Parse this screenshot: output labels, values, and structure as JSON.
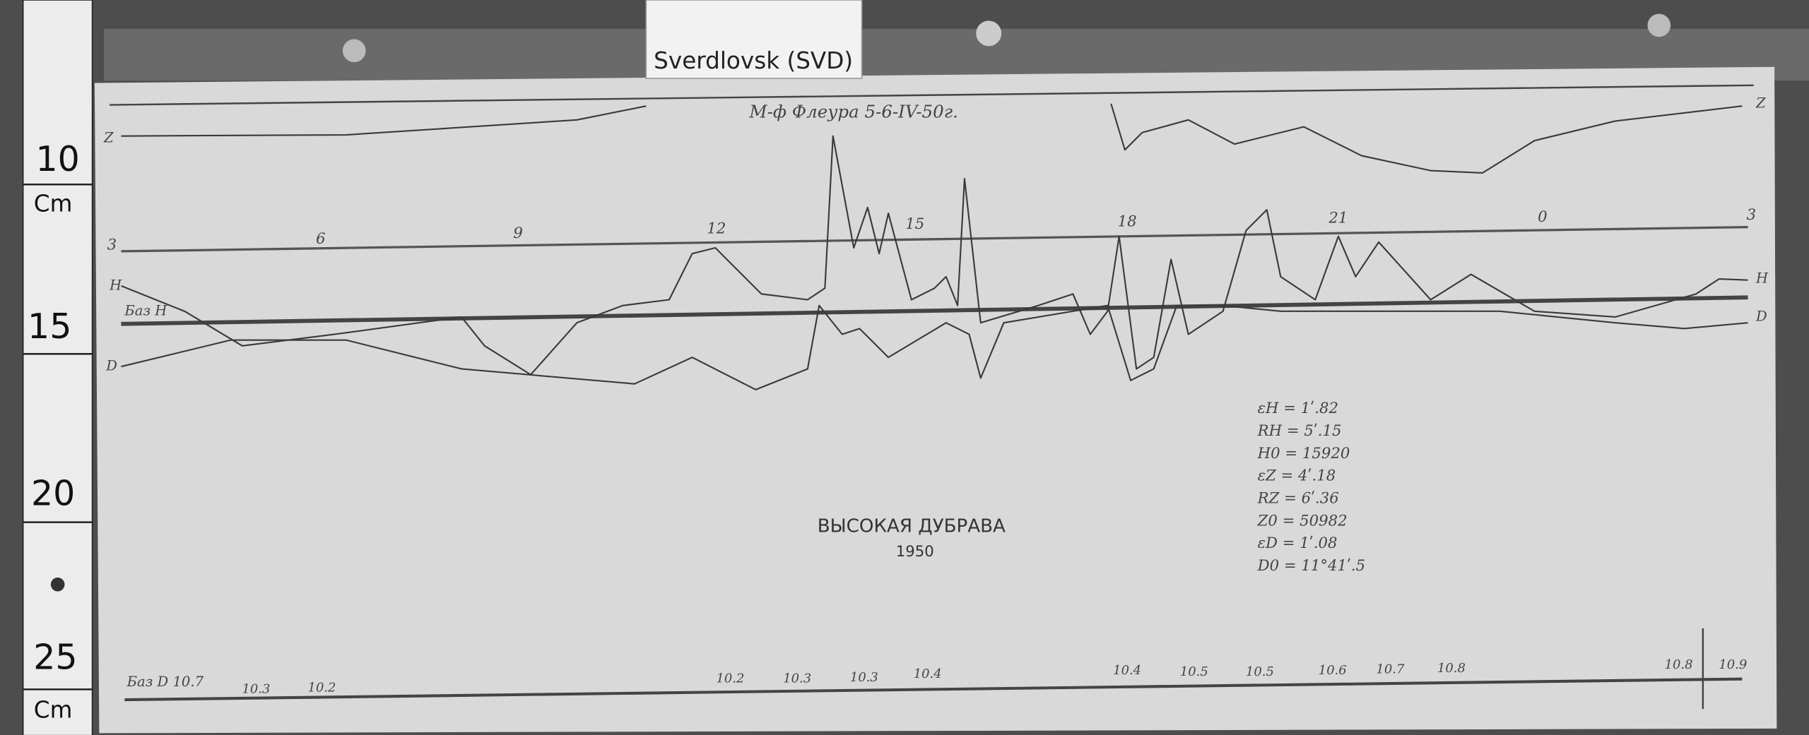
{
  "tag": "Sverdlovsk (SVD)",
  "ruler": {
    "labels": [
      "10",
      "Cm",
      "15",
      "20",
      "25",
      "Cm"
    ]
  },
  "magnetogram": {
    "title": "М-ф Флеура 5-6-IV-50г.",
    "station": "ВЫСОКАЯ ДУБРАВА",
    "year": "1950",
    "hour_marks": [
      "3",
      "6",
      "9",
      "12",
      "15",
      "18",
      "21",
      "0",
      "3"
    ],
    "trace_labels": [
      "Z",
      "H",
      "Баз H",
      "D",
      "Z",
      "H",
      "D"
    ],
    "base_label": "Баз D 10.7",
    "constants": [
      "εH = 1ʹ.82",
      "RH = 5ʹ.15",
      "H0 = 15920",
      "εZ = 4ʹ.18",
      "RZ = 6ʹ.36",
      "Z0 = 50982",
      "εD = 1ʹ.08",
      "D0 = 11°41ʹ.5"
    ],
    "bottom_marks": [
      "10.3",
      "10.2",
      "10.2",
      "10.3",
      "10.3",
      "10.4",
      "10.4",
      "10.5",
      "10.5",
      "10.6",
      "10.7",
      "10.8",
      "10.8",
      "10.9"
    ]
  }
}
